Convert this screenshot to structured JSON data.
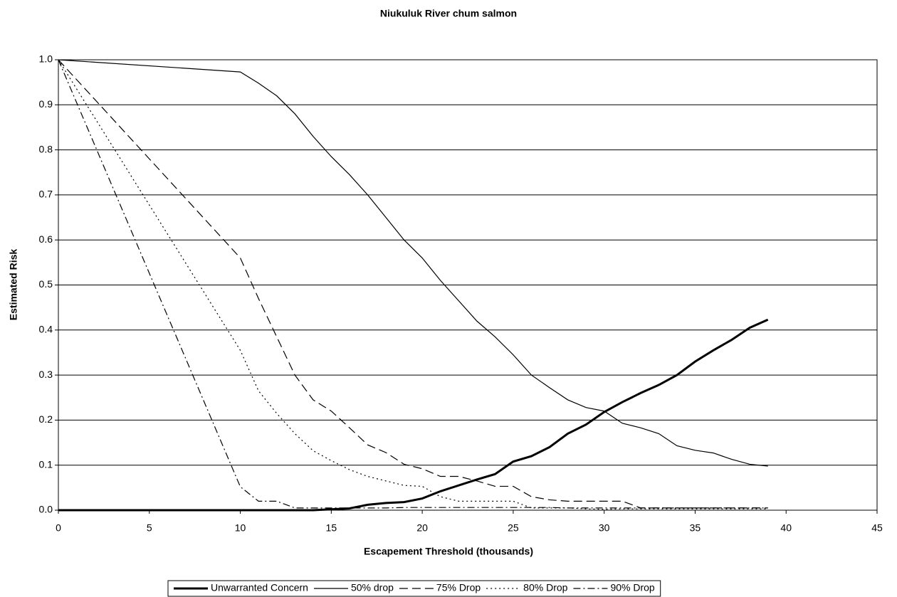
{
  "chart_data": {
    "type": "line",
    "title": "Niukuluk River chum salmon",
    "x_label": "Escapement Threshold (thousands)",
    "y_label": "Estimated Risk",
    "x": [
      0,
      10,
      11,
      12,
      13,
      14,
      15,
      16,
      17,
      18,
      19,
      20,
      21,
      22,
      23,
      24,
      25,
      26,
      27,
      28,
      29,
      30,
      31,
      32,
      33,
      34,
      35,
      36,
      37,
      38,
      39
    ],
    "series": [
      {
        "name": "Unwarranted Concern",
        "color": "#000000",
        "width": 3,
        "dash": "none",
        "values": [
          0,
          0,
          0,
          0,
          0,
          0,
          0.002,
          0.004,
          0.012,
          0.016,
          0.018,
          0.026,
          0.042,
          0.055,
          0.068,
          0.08,
          0.108,
          0.12,
          0.14,
          0.17,
          0.19,
          0.218,
          0.24,
          0.26,
          0.278,
          0.3,
          0.33,
          0.355,
          0.378,
          0.405,
          0.423
        ]
      },
      {
        "name": "50% drop",
        "color": "#000000",
        "width": 1.2,
        "dash": "none",
        "values": [
          1.0,
          0.973,
          0.948,
          0.92,
          0.88,
          0.83,
          0.785,
          0.745,
          0.7,
          0.65,
          0.6,
          0.56,
          0.51,
          0.465,
          0.42,
          0.385,
          0.345,
          0.3,
          0.272,
          0.245,
          0.228,
          0.22,
          0.193,
          0.183,
          0.17,
          0.143,
          0.133,
          0.127,
          0.113,
          0.102,
          0.098
        ]
      },
      {
        "name": "75% Drop",
        "color": "#000000",
        "width": 1.2,
        "dash": "12 6",
        "values": [
          1.0,
          0.56,
          0.47,
          0.385,
          0.3,
          0.245,
          0.22,
          0.183,
          0.145,
          0.128,
          0.102,
          0.092,
          0.075,
          0.075,
          0.065,
          0.053,
          0.053,
          0.03,
          0.023,
          0.02,
          0.02,
          0.02,
          0.02,
          0.005,
          0.005,
          0.005,
          0.005,
          0.005,
          0.005,
          0.005,
          0.005
        ]
      },
      {
        "name": "80% Drop",
        "color": "#000000",
        "width": 1.2,
        "dash": "2 4",
        "values": [
          1.0,
          0.355,
          0.265,
          0.215,
          0.17,
          0.132,
          0.11,
          0.09,
          0.075,
          0.065,
          0.055,
          0.053,
          0.03,
          0.02,
          0.02,
          0.02,
          0.02,
          0.005,
          0.005,
          0.005,
          0.003,
          0.002,
          0.003,
          0.003,
          0.003,
          0.003,
          0.003,
          0.003,
          0.003,
          0.003,
          0.003
        ]
      },
      {
        "name": "90% Drop",
        "color": "#000000",
        "width": 1.2,
        "dash": "10 4 2 4",
        "values": [
          1.0,
          0.052,
          0.02,
          0.02,
          0.005,
          0.005,
          0.005,
          0.005,
          0.005,
          0.005,
          0.006,
          0.006,
          0.006,
          0.006,
          0.006,
          0.006,
          0.006,
          0.006,
          0.006,
          0.005,
          0.005,
          0.005,
          0.005,
          0.005,
          0.005,
          0.005,
          0.005,
          0.005,
          0.005,
          0.005,
          0.005
        ]
      }
    ],
    "xlim": [
      0,
      45
    ],
    "xticks": [
      0,
      5,
      10,
      15,
      20,
      25,
      30,
      35,
      40,
      45
    ],
    "ylim": [
      0,
      1
    ],
    "yticks": [
      {
        "value": 0,
        "label": "0.0"
      },
      0.1,
      0.2,
      0.3,
      0.4,
      0.5,
      0.6,
      0.7,
      0.8,
      0.9,
      {
        "value": 1,
        "label": "1.0"
      }
    ],
    "grid": true,
    "legend": "bottom"
  }
}
